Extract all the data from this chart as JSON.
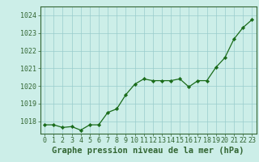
{
  "x": [
    0,
    1,
    2,
    3,
    4,
    5,
    6,
    7,
    8,
    9,
    10,
    11,
    12,
    13,
    14,
    15,
    16,
    17,
    18,
    19,
    20,
    21,
    22,
    23
  ],
  "y": [
    1017.8,
    1017.8,
    1017.65,
    1017.7,
    1017.5,
    1017.8,
    1017.8,
    1018.5,
    1018.7,
    1019.5,
    1020.1,
    1020.4,
    1020.3,
    1020.3,
    1020.3,
    1020.4,
    1019.95,
    1020.3,
    1020.3,
    1021.05,
    1021.6,
    1022.65,
    1023.3,
    1023.75
  ],
  "ylim": [
    1017.3,
    1024.5
  ],
  "yticks": [
    1018,
    1019,
    1020,
    1021,
    1022,
    1023,
    1024
  ],
  "xlim": [
    -0.5,
    23.5
  ],
  "xticks": [
    0,
    1,
    2,
    3,
    4,
    5,
    6,
    7,
    8,
    9,
    10,
    11,
    12,
    13,
    14,
    15,
    16,
    17,
    18,
    19,
    20,
    21,
    22,
    23
  ],
  "xlabel": "Graphe pression niveau de la mer (hPa)",
  "line_color": "#1a6b1a",
  "marker_color": "#1a6b1a",
  "bg_color": "#cceee8",
  "grid_color": "#99cccc",
  "spine_color": "#336633",
  "tick_fontsize": 6,
  "label_fontsize": 7.5,
  "label_fontweight": "bold"
}
